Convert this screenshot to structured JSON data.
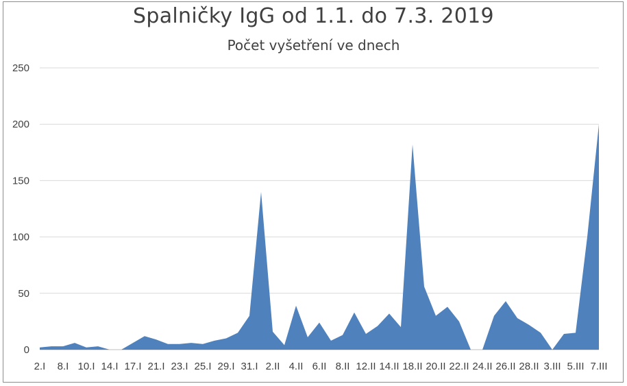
{
  "chart_data": {
    "type": "area",
    "title": "Spalničky IgG od 1.1. do 7.3. 2019",
    "subtitle": "Počet vyšetření ve dnech",
    "xlabel": "",
    "ylabel": "",
    "ylim": [
      0,
      250
    ],
    "yticks": [
      0,
      50,
      100,
      150,
      200,
      250
    ],
    "grid": true,
    "legend": "none",
    "color": "#4f81bd",
    "x_tick_labels": [
      "2.I",
      "8.I",
      "10.I",
      "14.I",
      "17.I",
      "21.I",
      "23.I",
      "25.I",
      "29.I",
      "31.I",
      "2.II",
      "4.II",
      "6.II",
      "8.II",
      "12.II",
      "14.II",
      "18.II",
      "20.II",
      "22.II",
      "24.II",
      "26.II",
      "28.II",
      "3.III",
      "5.III",
      "7.III"
    ],
    "values": [
      2,
      3,
      3,
      6,
      2,
      3,
      0,
      0,
      6,
      12,
      9,
      5,
      5,
      6,
      5,
      8,
      10,
      15,
      30,
      140,
      16,
      4,
      39,
      11,
      24,
      8,
      13,
      33,
      14,
      21,
      32,
      20,
      182,
      56,
      30,
      38,
      25,
      0,
      0,
      30,
      43,
      28,
      22,
      15,
      0,
      14,
      15,
      100,
      200
    ]
  }
}
